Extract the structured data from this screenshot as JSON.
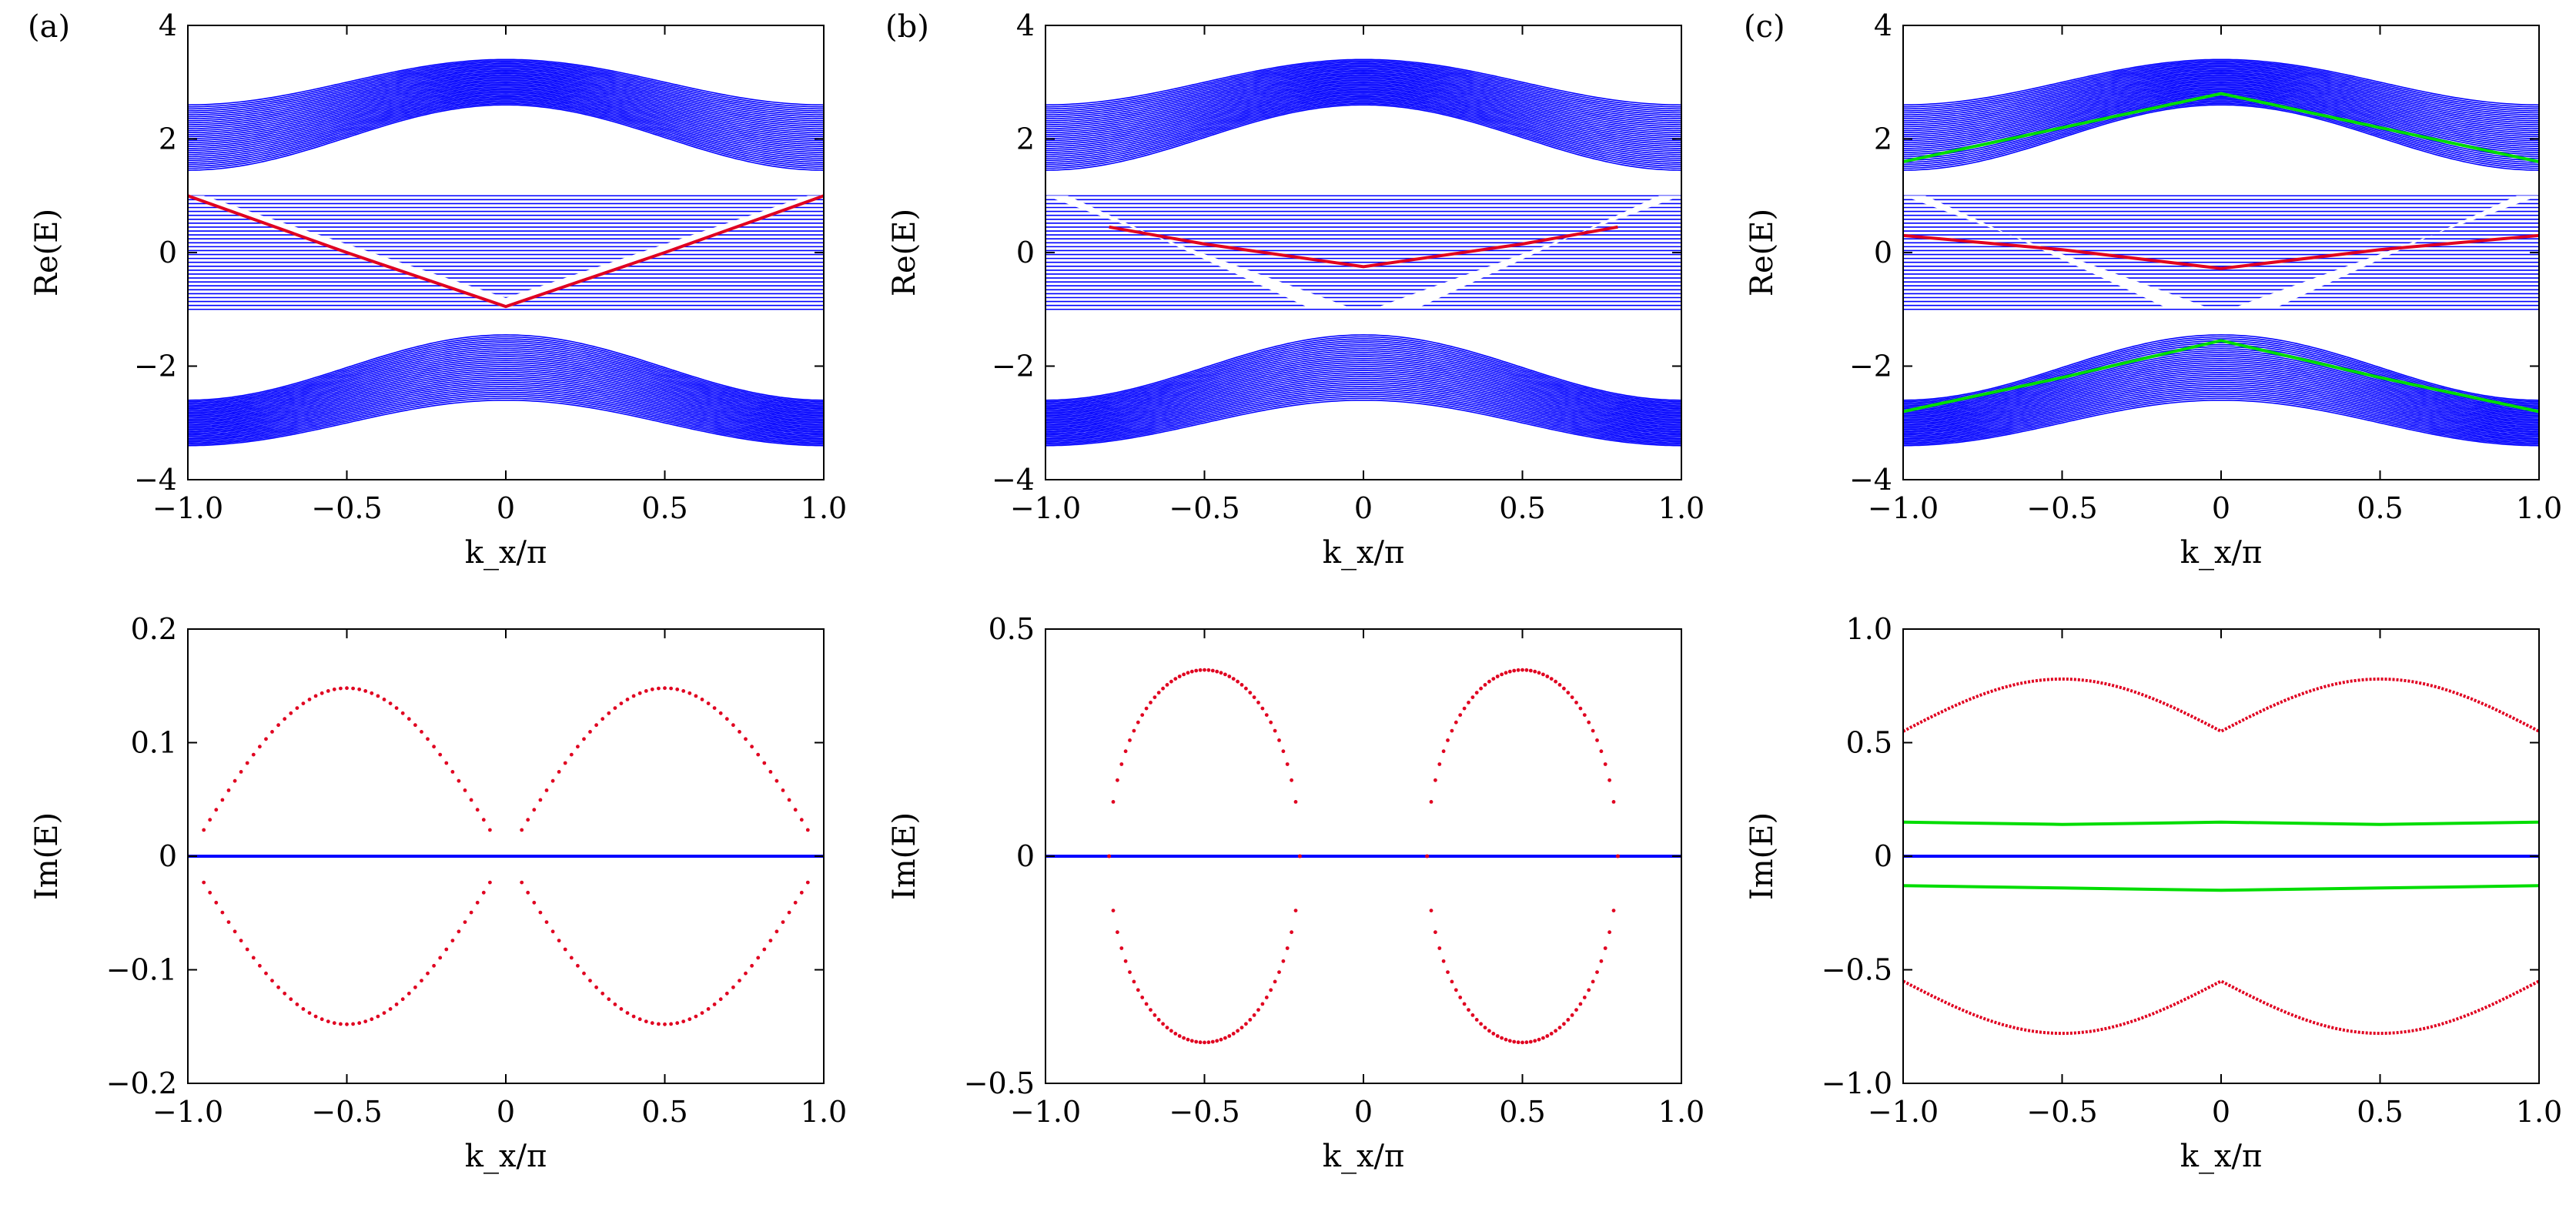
{
  "figure": {
    "panel_labels": [
      "(a)",
      "(b)",
      "(c)"
    ]
  },
  "chart_data": [
    {
      "id": "a-top",
      "panel": "(a)",
      "row": "top",
      "type": "line",
      "xlabel": "k_x/π",
      "ylabel": "Re(E)",
      "xlim": [
        -1.0,
        1.0
      ],
      "ylim": [
        -4,
        4
      ],
      "xticks": [
        "−1.0",
        "−0.5",
        "0",
        "0.5",
        "1.0"
      ],
      "yticks": [
        "−4",
        "−2",
        "0",
        "2",
        "4"
      ],
      "colors": {
        "bulk": "#0000ff",
        "edge": "#e00020",
        "green": "#00dd00"
      },
      "series": [
        {
          "name": "upper bulk band",
          "color": "#0000ff",
          "kind": "band",
          "f": "cos",
          "center_range": [
            2.6,
            3.4
          ],
          "edge_range": [
            1.45,
            2.6
          ],
          "count": 34
        },
        {
          "name": "lower bulk band",
          "color": "#0000ff",
          "kind": "band",
          "f": "cos_neg",
          "center_range": [
            -1.45,
            -2.6
          ],
          "edge_range": [
            -2.6,
            -3.4
          ],
          "count": 34
        },
        {
          "name": "middle flat-range band",
          "color": "#0000ff",
          "kind": "mid",
          "y_range": [
            -1,
            1
          ],
          "count": 30,
          "gap": "V",
          "gap_center": -0.95,
          "gap_edge": 1.0
        },
        {
          "name": "edge state",
          "color": "#e00020",
          "kind": "line",
          "x": [
            -1.0,
            -0.5,
            0.0,
            0.5,
            1.0
          ],
          "y": [
            1.0,
            0.0,
            -0.95,
            0.0,
            1.0
          ]
        }
      ]
    },
    {
      "id": "b-top",
      "panel": "(b)",
      "row": "top",
      "type": "line",
      "xlabel": "k_x/π",
      "ylabel": "Re(E)",
      "xlim": [
        -1.0,
        1.0
      ],
      "ylim": [
        -4,
        4
      ],
      "xticks": [
        "−1.0",
        "−0.5",
        "0",
        "0.5",
        "1.0"
      ],
      "yticks": [
        "−4",
        "−2",
        "0",
        "2",
        "4"
      ],
      "colors": {
        "bulk": "#0000ff",
        "edge": "#e00020",
        "green": "#00dd00"
      },
      "series": [
        {
          "name": "upper bulk band",
          "color": "#0000ff",
          "kind": "band",
          "f": "cos",
          "center_range": [
            2.6,
            3.4
          ],
          "edge_range": [
            1.45,
            2.6
          ],
          "count": 34
        },
        {
          "name": "lower bulk band",
          "color": "#0000ff",
          "kind": "band",
          "f": "cos_neg",
          "center_range": [
            -1.45,
            -2.6
          ],
          "edge_range": [
            -2.6,
            -3.4
          ],
          "count": 34
        },
        {
          "name": "middle flat-range band",
          "color": "#0000ff",
          "kind": "mid",
          "y_range": [
            -1,
            1
          ],
          "count": 30,
          "gap": "X",
          "gap_center": -0.95,
          "gap_edge": 1.0
        },
        {
          "name": "edge state",
          "color": "#e00020",
          "kind": "line",
          "x": [
            -0.8,
            -0.5,
            0.0,
            0.5,
            0.8
          ],
          "y": [
            0.45,
            0.15,
            -0.25,
            0.15,
            0.45
          ]
        }
      ]
    },
    {
      "id": "c-top",
      "panel": "(c)",
      "row": "top",
      "type": "line",
      "xlabel": "k_x/π",
      "ylabel": "Re(E)",
      "xlim": [
        -1.0,
        1.0
      ],
      "ylim": [
        -4,
        4
      ],
      "xticks": [
        "−1.0",
        "−0.5",
        "0",
        "0.5",
        "1.0"
      ],
      "yticks": [
        "−4",
        "−2",
        "0",
        "2",
        "4"
      ],
      "colors": {
        "bulk": "#0000ff",
        "edge": "#e00020",
        "green": "#00dd00"
      },
      "series": [
        {
          "name": "upper bulk band",
          "color": "#0000ff",
          "kind": "band",
          "f": "cos",
          "center_range": [
            2.6,
            3.4
          ],
          "edge_range": [
            1.45,
            2.6
          ],
          "count": 34
        },
        {
          "name": "lower bulk band",
          "color": "#0000ff",
          "kind": "band",
          "f": "cos_neg",
          "center_range": [
            -1.45,
            -2.6
          ],
          "edge_range": [
            -2.6,
            -3.4
          ],
          "count": 34
        },
        {
          "name": "middle flat-range band",
          "color": "#0000ff",
          "kind": "mid",
          "y_range": [
            -1,
            1
          ],
          "count": 30,
          "gap": "X",
          "gap_center": -0.95,
          "gap_edge": 1.0
        },
        {
          "name": "green state upper",
          "color": "#00dd00",
          "kind": "line",
          "x": [
            -1.0,
            -0.5,
            0.0,
            0.5,
            1.0
          ],
          "y": [
            1.6,
            2.2,
            2.8,
            2.2,
            1.6
          ]
        },
        {
          "name": "green state lower",
          "color": "#00dd00",
          "kind": "line",
          "x": [
            -1.0,
            -0.5,
            0.0,
            0.5,
            1.0
          ],
          "y": [
            -2.8,
            -2.2,
            -1.55,
            -2.2,
            -2.8
          ]
        },
        {
          "name": "edge state",
          "color": "#e00020",
          "kind": "line",
          "x": [
            -1.0,
            -0.5,
            0.0,
            0.5,
            1.0
          ],
          "y": [
            0.3,
            0.05,
            -0.28,
            0.05,
            0.3
          ]
        }
      ]
    },
    {
      "id": "a-bottom",
      "panel": "(a)",
      "row": "bottom",
      "type": "scatter",
      "xlabel": "k_x/π",
      "ylabel": "Im(E)",
      "xlim": [
        -1.0,
        1.0
      ],
      "ylim": [
        -0.2,
        0.2
      ],
      "xticks": [
        "−1.0",
        "−0.5",
        "0",
        "0.5",
        "1.0"
      ],
      "yticks": [
        "−0.2",
        "−0.1",
        "0",
        "0.1",
        "0.2"
      ],
      "series": [
        {
          "name": "zero imaginary part",
          "color": "#0000ff",
          "kind": "line",
          "x": [
            -1.0,
            1.0
          ],
          "y": [
            0.0,
            0.0
          ]
        },
        {
          "name": "edge states (+)",
          "color": "#e00020",
          "kind": "dots",
          "f": "sin2",
          "amp": 0.148,
          "segments": [
            [
              -0.95,
              -0.05
            ],
            [
              0.05,
              0.95
            ]
          ]
        },
        {
          "name": "edge states (−)",
          "color": "#e00020",
          "kind": "dots",
          "f": "sin2",
          "amp": -0.148,
          "segments": [
            [
              -0.95,
              -0.05
            ],
            [
              0.05,
              0.95
            ]
          ]
        }
      ]
    },
    {
      "id": "b-bottom",
      "panel": "(b)",
      "row": "bottom",
      "type": "scatter",
      "xlabel": "k_x/π",
      "ylabel": "Im(E)",
      "xlim": [
        -1.0,
        1.0
      ],
      "ylim": [
        -0.5,
        0.5
      ],
      "xticks": [
        "−1.0",
        "−0.5",
        "0",
        "0.5",
        "1.0"
      ],
      "yticks": [
        "−0.5",
        "0",
        "0.5"
      ],
      "series": [
        {
          "name": "zero imaginary part",
          "color": "#0000ff",
          "kind": "line",
          "x": [
            -1.0,
            1.0
          ],
          "y": [
            0.0,
            0.0
          ]
        },
        {
          "name": "edge states (+)",
          "color": "#e00020",
          "kind": "dots",
          "f": "ellipse",
          "amp": 0.41,
          "segments": [
            [
              -0.8,
              -0.2
            ],
            [
              0.2,
              0.8
            ]
          ]
        },
        {
          "name": "edge states (−)",
          "color": "#e00020",
          "kind": "dots",
          "f": "ellipse",
          "amp": -0.41,
          "segments": [
            [
              -0.8,
              -0.2
            ],
            [
              0.2,
              0.8
            ]
          ]
        }
      ]
    },
    {
      "id": "c-bottom",
      "panel": "(c)",
      "row": "bottom",
      "type": "scatter",
      "xlabel": "k_x/π",
      "ylabel": "Im(E)",
      "xlim": [
        -1.0,
        1.0
      ],
      "ylim": [
        -1.0,
        1.0
      ],
      "xticks": [
        "−1.0",
        "−0.5",
        "0",
        "0.5",
        "1.0"
      ],
      "yticks": [
        "−1.0",
        "−0.5",
        "0",
        "0.5",
        "1.0"
      ],
      "series": [
        {
          "name": "zero imaginary part",
          "color": "#0000ff",
          "kind": "line",
          "x": [
            -1.0,
            1.0
          ],
          "y": [
            0.0,
            0.0
          ]
        },
        {
          "name": "green state (+)",
          "color": "#00dd00",
          "kind": "line",
          "x": [
            -1.0,
            -0.5,
            0.0,
            0.5,
            1.0
          ],
          "y": [
            0.15,
            0.14,
            0.15,
            0.14,
            0.15
          ]
        },
        {
          "name": "green state (−)",
          "color": "#00dd00",
          "kind": "line",
          "x": [
            -1.0,
            -0.5,
            0.0,
            0.5,
            1.0
          ],
          "y": [
            -0.13,
            -0.14,
            -0.15,
            -0.14,
            -0.13
          ]
        },
        {
          "name": "edge state (+)",
          "color": "#e00020",
          "kind": "curve",
          "f": "sin2abs",
          "base": 0.55,
          "amp": 0.23
        },
        {
          "name": "edge state (−)",
          "color": "#e00020",
          "kind": "curve",
          "f": "sin2abs",
          "base": -0.55,
          "amp": -0.23
        }
      ]
    }
  ]
}
